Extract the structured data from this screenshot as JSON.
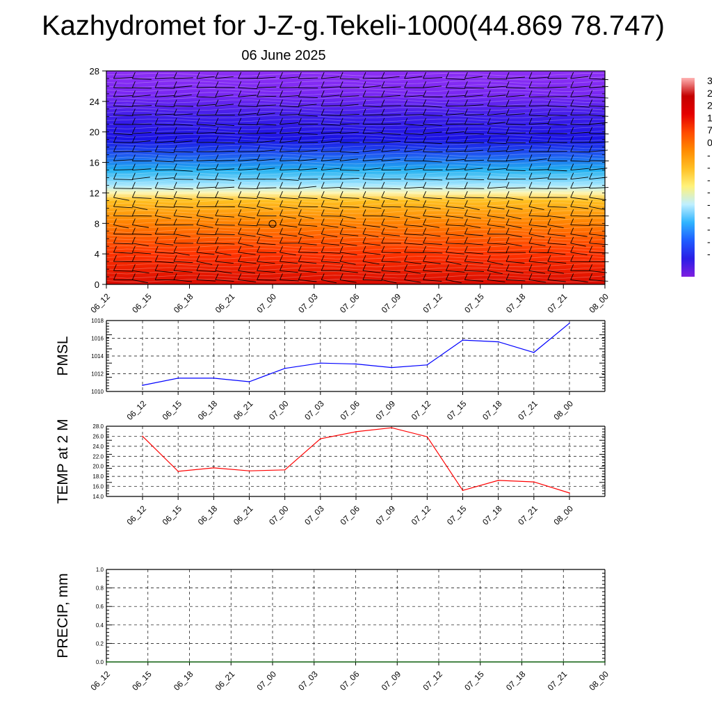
{
  "title": "Kazhydromet for J-Z-g.Tekeli-1000(44.869 78.747)",
  "subtitle": "06 June 2025",
  "time_labels": [
    "06_12",
    "06_15",
    "06_18",
    "06_21",
    "07_00",
    "07_03",
    "07_06",
    "07_09",
    "07_12",
    "07_15",
    "07_18",
    "07_21",
    "08_00"
  ],
  "chart_data": [
    {
      "type": "heatmap",
      "title": "",
      "xlabel": "",
      "ylabel": "",
      "ylim": [
        0,
        28
      ],
      "y_ticks": [
        0,
        4,
        8,
        12,
        16,
        20,
        24,
        28
      ],
      "colorbar": {
        "labels": [
          "3",
          "2",
          "2",
          "1",
          "7",
          "0",
          "-",
          "-",
          "-",
          "-",
          "-",
          "-",
          "-",
          "-",
          "-"
        ],
        "colors": [
          "#7f1fe0",
          "#2a1ee6",
          "#1f5cff",
          "#2fb4ff",
          "#bfefff",
          "#fff27a",
          "#ffc024",
          "#ff8a00",
          "#ff4a00",
          "#e40000",
          "#c40000",
          "#ffb3b3"
        ]
      },
      "color_stops": [
        {
          "level": 0,
          "color": "#d90b00"
        },
        {
          "level": 4,
          "color": "#ff3300"
        },
        {
          "level": 8,
          "color": "#ff8000"
        },
        {
          "level": 11,
          "color": "#ffc020"
        },
        {
          "level": 12,
          "color": "#fff6b0"
        },
        {
          "level": 13,
          "color": "#a8e8ff"
        },
        {
          "level": 15,
          "color": "#20b0f0"
        },
        {
          "level": 17,
          "color": "#1e58f0"
        },
        {
          "level": 19,
          "color": "#1a14e4"
        },
        {
          "level": 22,
          "color": "#3e1ee8"
        },
        {
          "level": 25,
          "color": "#7a28f2"
        },
        {
          "level": 28,
          "color": "#8e30f4"
        }
      ],
      "wind_barbs": "present at every time step and level"
    },
    {
      "type": "line",
      "ylabel": "PMSL",
      "ylim": [
        1010,
        1018
      ],
      "y_ticks": [
        1010,
        1012,
        1014,
        1016,
        1018
      ],
      "series": [
        {
          "color": "#0000ff",
          "values": [
            1010.7,
            1011.5,
            1011.5,
            1011.1,
            1012.6,
            1013.2,
            1013.1,
            1012.7,
            1013.0,
            1015.8,
            1015.6,
            1014.4,
            1017.7
          ]
        }
      ]
    },
    {
      "type": "line",
      "ylabel": "TEMP at 2 M",
      "ylim": [
        14.0,
        28.0
      ],
      "y_ticks": [
        "14.0",
        "16.0",
        "18.0",
        "20.0",
        "22.0",
        "24.0",
        "26.0",
        "28.0"
      ],
      "series": [
        {
          "color": "#ff0000",
          "values": [
            26.0,
            19.0,
            19.7,
            19.1,
            19.3,
            25.5,
            26.9,
            27.7,
            25.9,
            15.2,
            17.2,
            16.9,
            14.7
          ]
        }
      ]
    },
    {
      "type": "line",
      "ylabel": "PRECIP, mm",
      "ylim": [
        0.0,
        1.0
      ],
      "y_ticks": [
        "0.0",
        "0.2",
        "0.4",
        "0.6",
        "0.8",
        "1.0"
      ],
      "series": [
        {
          "color": "#006400",
          "values": [
            0,
            0,
            0,
            0,
            0,
            0,
            0,
            0,
            0,
            0,
            0,
            0,
            0
          ]
        }
      ]
    }
  ]
}
